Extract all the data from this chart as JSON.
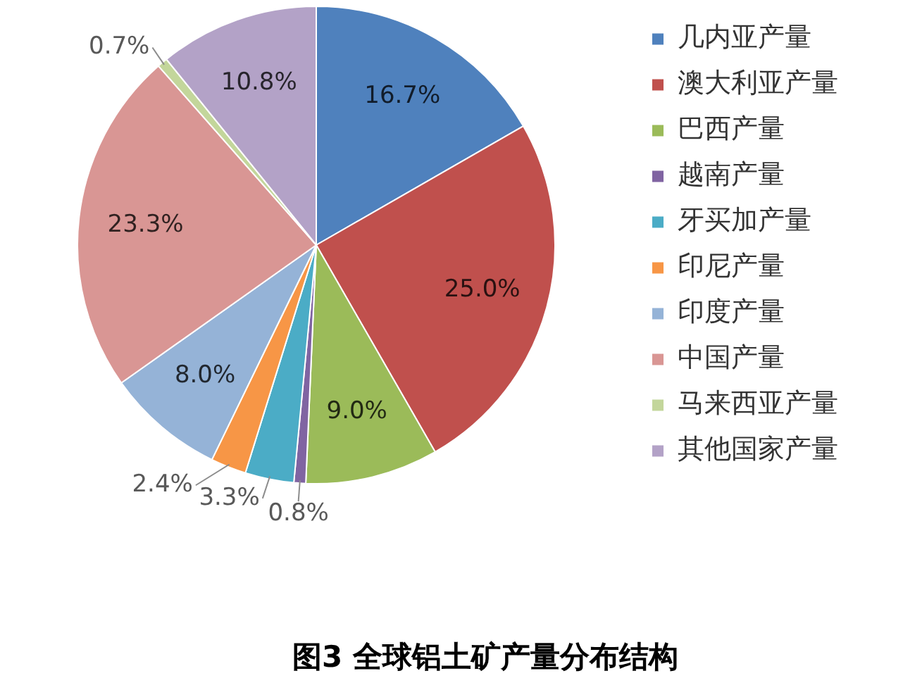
{
  "chart_data": {
    "type": "pie",
    "title": "图3 全球铝土矿产量分布结构",
    "categories": [
      "几内亚产量",
      "澳大利亚产量",
      "巴西产量",
      "越南产量",
      "牙买加产量",
      "印尼产量",
      "印度产量",
      "中国产量",
      "马来西亚产量",
      "其他国家产量"
    ],
    "values": [
      16.7,
      25.0,
      9.0,
      0.8,
      3.3,
      2.4,
      8.0,
      23.3,
      0.7,
      10.8
    ],
    "colors": [
      "#4f81bd",
      "#c0504d",
      "#9bbb59",
      "#8064a2",
      "#4bacc6",
      "#f79646",
      "#95b3d7",
      "#d99694",
      "#c3d69b",
      "#b3a2c7"
    ],
    "value_labels": [
      "16.7%",
      "25.0%",
      "9.0%",
      "0.8%",
      "3.3%",
      "2.4%",
      "8.0%",
      "23.3%",
      "0.7%",
      "10.8%"
    ],
    "legend": "right"
  }
}
